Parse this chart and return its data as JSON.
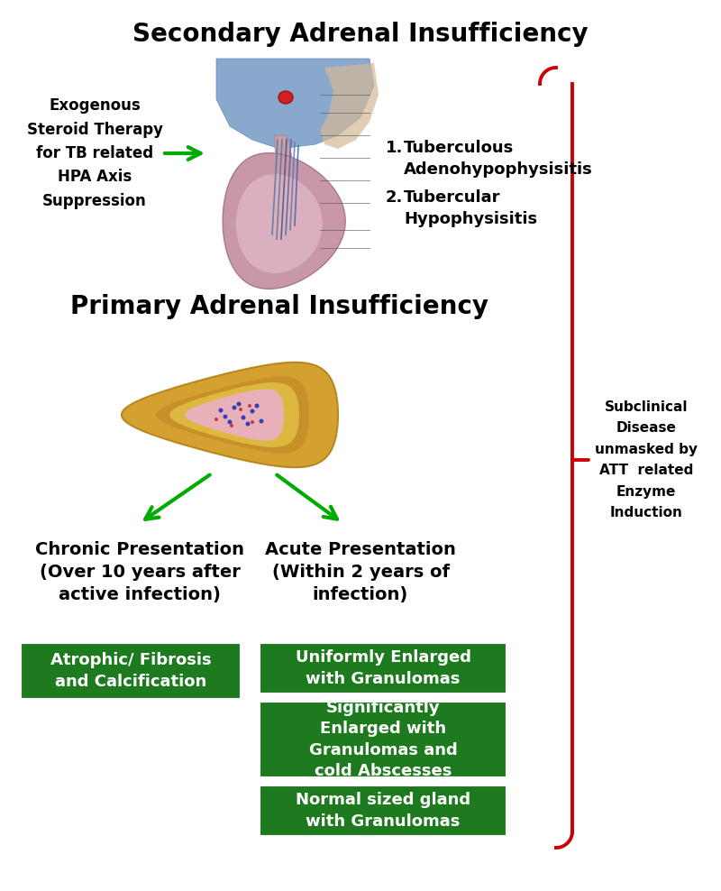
{
  "title_secondary": "Secondary Adrenal Insufficiency",
  "title_primary": "Primary Adrenal Insufficiency",
  "left_text": "Exogenous\nSteroid Therapy\nfor TB related\nHPA Axis\nSuppression",
  "item1_num": "1.",
  "item1_text": "Tuberculous\nAdenohypophysisitis",
  "item2_num": "2.",
  "item2_text": "Tubercular\nHypophysisitis",
  "chronic_title": "Chronic Presentation\n(Over 10 years after\nactive infection)",
  "acute_title": "Acute Presentation\n(Within 2 years of\ninfection)",
  "chronic_box": "Atrophic/ Fibrosis\nand Calcification",
  "acute_box1": "Uniformly Enlarged\nwith Granulomas",
  "acute_box2": "Significantly\nEnlarged with\nGranulomas and\ncold Abscesses",
  "acute_box3": "Normal sized gland\nwith Granulomas",
  "right_label": "Subclinical\nDisease\nunmasked by\nATT  related\nEnzyme\nInduction",
  "green_box_color": "#1e7a1e",
  "green_arrow_color": "#00aa00",
  "red_color": "#cc0000",
  "bg_color": "#ffffff"
}
